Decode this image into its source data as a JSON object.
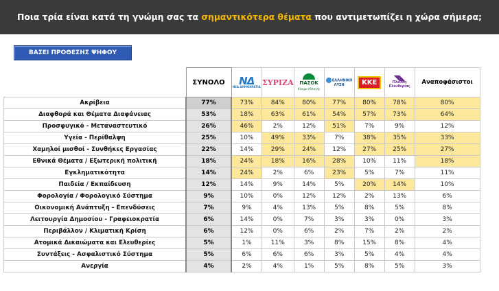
{
  "header": {
    "title_part1": "Ποια τρία είναι κατά τη γνώμη σας τα ",
    "title_highlight": "σημαντικότερα θέματα",
    "title_part2": " που αντιμετωπίζει η χώρα σήμερα;"
  },
  "base_button": "ΒΑΣΕΙ ΠΡΟΘΕΣΗΣ ΨΗΦΟΥ",
  "colors": {
    "header_bg": "#3a3a3a",
    "highlight_text": "#f5b800",
    "cell_highlight": "#fde79b",
    "button": "#2f5bb4"
  },
  "chart_data": {
    "type": "table",
    "title": "Ποια τρία είναι κατά τη γνώμη σας τα σημαντικότερα θέματα που αντιμετωπίζει η χώρα σήμερα;",
    "columns": [
      {
        "label": "ΣΥΝΟΛΟ"
      },
      {
        "label": "ΝΔ",
        "logo_text": "ΝΔ",
        "logo_sub": "ΝΕΑ ΔΗΜΟΚΡΑΤΙΑ"
      },
      {
        "label": "ΣΥΡΙΖΑ",
        "logo_text": "ΣΥΡΙΖΑ"
      },
      {
        "label": "ΠΑΣΟΚ",
        "logo_text": "ΠΑΣΟΚ",
        "logo_sub": "Κίνημα Αλλαγής"
      },
      {
        "label": "ΕΛΛΗΝΙΚΗ ΛΥΣΗ",
        "logo_text": "ΕΛΛΗΝΙΚΗ ΛΥΣΗ"
      },
      {
        "label": "ΚΚΕ",
        "logo_text": "ΚΚΕ"
      },
      {
        "label": "Πλεύση Ελευθερίας",
        "logo_text": "Πλεύση Ελευθερίας"
      },
      {
        "label": "Αναποφάσιστοι"
      }
    ],
    "rows": [
      {
        "label": "Ακρίβεια",
        "values": [
          "77%",
          "73%",
          "84%",
          "80%",
          "77%",
          "80%",
          "78%",
          "80%"
        ],
        "highlight": [
          false,
          true,
          true,
          true,
          true,
          true,
          true,
          true
        ]
      },
      {
        "label": "Διαφθορά και Θέματα Διαφάνειας",
        "values": [
          "53%",
          "18%",
          "63%",
          "61%",
          "54%",
          "57%",
          "73%",
          "64%"
        ],
        "highlight": [
          false,
          true,
          true,
          true,
          true,
          true,
          true,
          true
        ]
      },
      {
        "label": "Προσφυγικό - Μεταναστευτικό",
        "values": [
          "26%",
          "46%",
          "2%",
          "12%",
          "51%",
          "7%",
          "9%",
          "12%"
        ],
        "highlight": [
          false,
          true,
          false,
          false,
          true,
          false,
          false,
          false
        ]
      },
      {
        "label": "Υγεία - Περίθαλψη",
        "values": [
          "25%",
          "10%",
          "49%",
          "33%",
          "7%",
          "38%",
          "35%",
          "33%"
        ],
        "highlight": [
          false,
          false,
          true,
          true,
          false,
          true,
          true,
          true
        ]
      },
      {
        "label": "Χαμηλοί μισθοί - Συνθήκες Εργασίας",
        "values": [
          "22%",
          "14%",
          "29%",
          "24%",
          "12%",
          "27%",
          "25%",
          "27%"
        ],
        "highlight": [
          false,
          false,
          true,
          true,
          false,
          true,
          true,
          true
        ]
      },
      {
        "label": "Εθνικά Θέματα / Εξωτερική πολιτική",
        "values": [
          "18%",
          "24%",
          "18%",
          "16%",
          "28%",
          "10%",
          "11%",
          "18%"
        ],
        "highlight": [
          false,
          true,
          true,
          true,
          true,
          false,
          false,
          true
        ]
      },
      {
        "label": "Εγκληματικότητα",
        "values": [
          "14%",
          "24%",
          "2%",
          "6%",
          "23%",
          "5%",
          "7%",
          "11%"
        ],
        "highlight": [
          false,
          true,
          false,
          false,
          true,
          false,
          false,
          false
        ]
      },
      {
        "label": "Παιδεία / Εκπαίδευση",
        "values": [
          "12%",
          "14%",
          "9%",
          "14%",
          "5%",
          "20%",
          "14%",
          "10%"
        ],
        "highlight": [
          false,
          false,
          false,
          false,
          false,
          true,
          true,
          false
        ]
      },
      {
        "label": "Φορολογία / Φορολογικό Σύστημα",
        "values": [
          "9%",
          "10%",
          "0%",
          "12%",
          "12%",
          "2%",
          "13%",
          "6%"
        ],
        "highlight": [
          false,
          false,
          false,
          false,
          false,
          false,
          false,
          false
        ]
      },
      {
        "label": "Οικονομική Ανάπτυξη - Επενδύσεις",
        "values": [
          "7%",
          "9%",
          "4%",
          "13%",
          "5%",
          "8%",
          "5%",
          "8%"
        ],
        "highlight": [
          false,
          false,
          false,
          false,
          false,
          false,
          false,
          false
        ]
      },
      {
        "label": "Λειτουργία Δημοσίου - Γραφειοκρατία",
        "values": [
          "6%",
          "14%",
          "0%",
          "7%",
          "3%",
          "3%",
          "0%",
          "3%"
        ],
        "highlight": [
          false,
          false,
          false,
          false,
          false,
          false,
          false,
          false
        ]
      },
      {
        "label": "Περιβάλλον / Κλιματική Κρίση",
        "values": [
          "6%",
          "12%",
          "0%",
          "6%",
          "2%",
          "7%",
          "2%",
          "2%"
        ],
        "highlight": [
          false,
          false,
          false,
          false,
          false,
          false,
          false,
          false
        ]
      },
      {
        "label": "Ατομικά Δικαιώματα και Ελευθερίες",
        "values": [
          "5%",
          "1%",
          "11%",
          "3%",
          "8%",
          "15%",
          "8%",
          "4%"
        ],
        "highlight": [
          false,
          false,
          false,
          false,
          false,
          false,
          false,
          false
        ]
      },
      {
        "label": "Συντάξεις - Ασφαλιστικό Σύστημα",
        "values": [
          "5%",
          "6%",
          "6%",
          "6%",
          "3%",
          "5%",
          "4%",
          "4%"
        ],
        "highlight": [
          false,
          false,
          false,
          false,
          false,
          false,
          false,
          false
        ]
      },
      {
        "label": "Ανεργία",
        "values": [
          "4%",
          "2%",
          "4%",
          "1%",
          "5%",
          "8%",
          "5%",
          "3%"
        ],
        "highlight": [
          false,
          false,
          false,
          false,
          false,
          false,
          false,
          false
        ]
      }
    ]
  }
}
